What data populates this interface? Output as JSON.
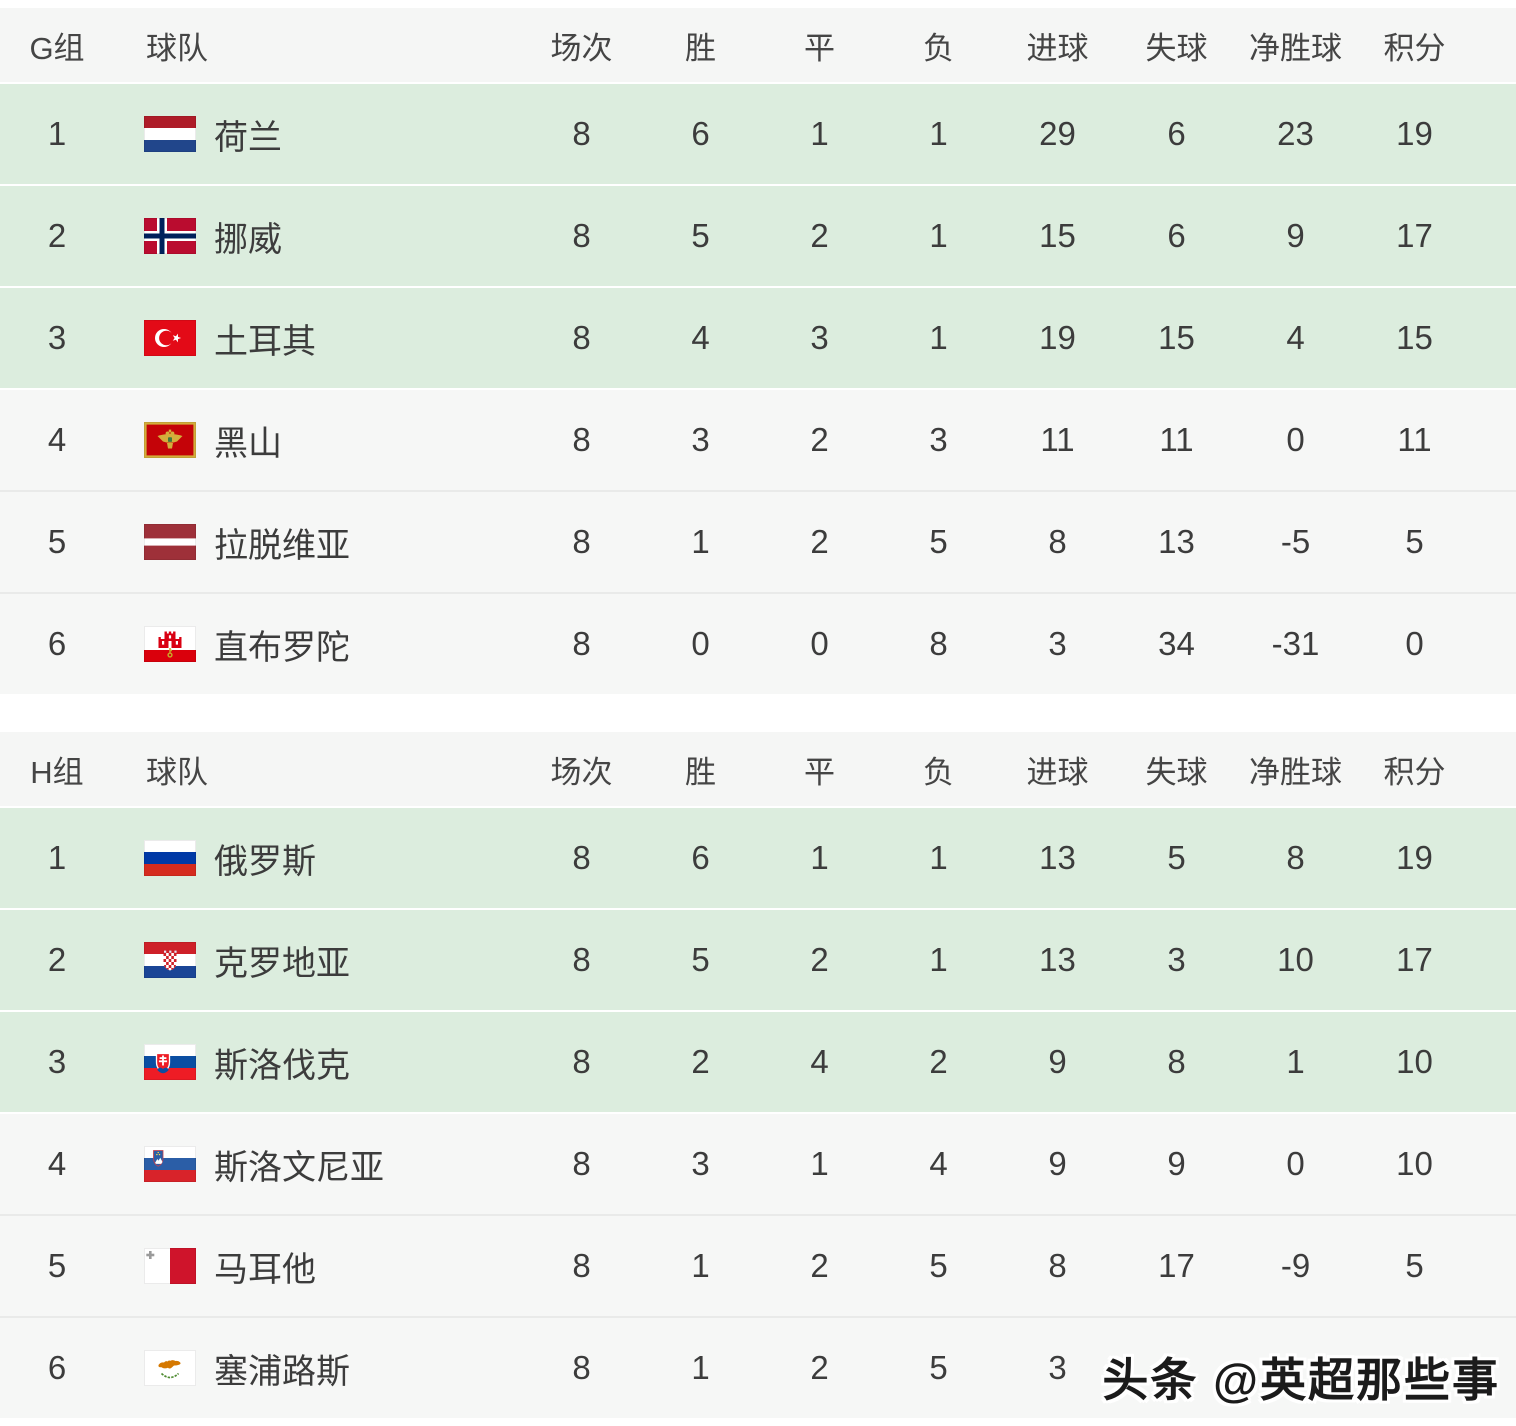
{
  "columns": [
    "场次",
    "胜",
    "平",
    "负",
    "进球",
    "失球",
    "净胜球",
    "积分"
  ],
  "groups": [
    {
      "group_label": "G组",
      "team_col_label": "球队",
      "teams": [
        {
          "rank": "1",
          "name": "荷兰",
          "flag": "netherlands",
          "highlight": true,
          "stats": [
            "8",
            "6",
            "1",
            "1",
            "29",
            "6",
            "23",
            "19"
          ]
        },
        {
          "rank": "2",
          "name": "挪威",
          "flag": "norway",
          "highlight": true,
          "stats": [
            "8",
            "5",
            "2",
            "1",
            "15",
            "6",
            "9",
            "17"
          ]
        },
        {
          "rank": "3",
          "name": "土耳其",
          "flag": "turkey",
          "highlight": true,
          "stats": [
            "8",
            "4",
            "3",
            "1",
            "19",
            "15",
            "4",
            "15"
          ]
        },
        {
          "rank": "4",
          "name": "黑山",
          "flag": "montenegro",
          "highlight": false,
          "stats": [
            "8",
            "3",
            "2",
            "3",
            "11",
            "11",
            "0",
            "11"
          ]
        },
        {
          "rank": "5",
          "name": "拉脱维亚",
          "flag": "latvia",
          "highlight": false,
          "stats": [
            "8",
            "1",
            "2",
            "5",
            "8",
            "13",
            "-5",
            "5"
          ]
        },
        {
          "rank": "6",
          "name": "直布罗陀",
          "flag": "gibraltar",
          "highlight": false,
          "stats": [
            "8",
            "0",
            "0",
            "8",
            "3",
            "34",
            "-31",
            "0"
          ]
        }
      ]
    },
    {
      "group_label": "H组",
      "team_col_label": "球队",
      "teams": [
        {
          "rank": "1",
          "name": "俄罗斯",
          "flag": "russia",
          "highlight": true,
          "stats": [
            "8",
            "6",
            "1",
            "1",
            "13",
            "5",
            "8",
            "19"
          ]
        },
        {
          "rank": "2",
          "name": "克罗地亚",
          "flag": "croatia",
          "highlight": true,
          "stats": [
            "8",
            "5",
            "2",
            "1",
            "13",
            "3",
            "10",
            "17"
          ]
        },
        {
          "rank": "3",
          "name": "斯洛伐克",
          "flag": "slovakia",
          "highlight": true,
          "stats": [
            "8",
            "2",
            "4",
            "2",
            "9",
            "8",
            "1",
            "10"
          ]
        },
        {
          "rank": "4",
          "name": "斯洛文尼亚",
          "flag": "slovenia",
          "highlight": false,
          "stats": [
            "8",
            "3",
            "1",
            "4",
            "9",
            "9",
            "0",
            "10"
          ]
        },
        {
          "rank": "5",
          "name": "马耳他",
          "flag": "malta",
          "highlight": false,
          "stats": [
            "8",
            "1",
            "2",
            "5",
            "8",
            "17",
            "-9",
            "5"
          ]
        },
        {
          "rank": "6",
          "name": "塞浦路斯",
          "flag": "cyprus",
          "highlight": false,
          "stats": [
            "8",
            "1",
            "2",
            "5",
            "3",
            "",
            "",
            ""
          ]
        }
      ]
    }
  ],
  "watermark": {
    "text": "头条 @英超那些事"
  },
  "colors": {
    "highlight_row": "#dcedde",
    "normal_row": "#f6f7f6",
    "header_row": "#f5f6f5",
    "row_divider": "#e9eae9",
    "text": "#3c3c3c"
  }
}
